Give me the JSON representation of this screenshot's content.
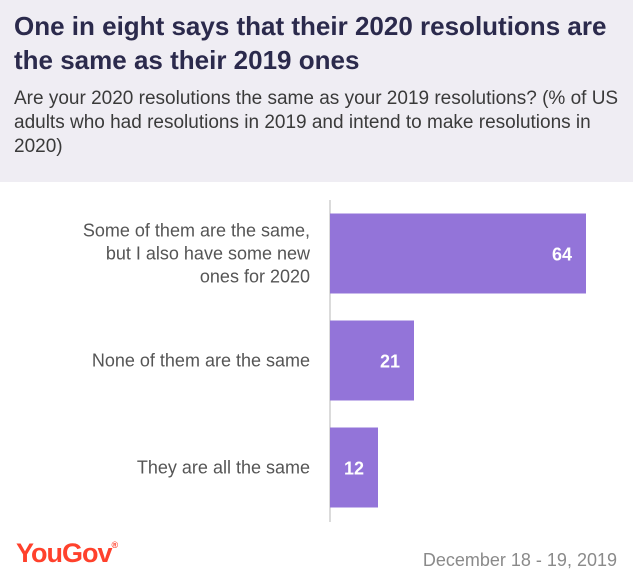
{
  "header": {
    "title": "One in eight says that their 2020 resolutions are the same as their 2019 ones",
    "subtitle": "Are your 2020 resolutions the same as your 2019 resolutions? (% of US adults who had resolutions in 2019 and intend to make resolutions in 2020)"
  },
  "chart_data": {
    "type": "bar",
    "orientation": "horizontal",
    "categories": [
      "Some of them are the same, but I also have some new ones for 2020",
      "None of them are the same",
      "They are all the same"
    ],
    "category_lines": [
      [
        "Some of them are the same,",
        "but I also have some new",
        "ones for 2020"
      ],
      [
        "None of them are the same"
      ],
      [
        "They are all the same"
      ]
    ],
    "values": [
      64,
      21,
      12
    ],
    "xlim": [
      0,
      72
    ],
    "bar_color": "#9374d9",
    "value_label_color": "#ffffff",
    "axis_color": "#cfcfcf",
    "grid": false,
    "legend": "none"
  },
  "footer": {
    "logo": "YouGov",
    "logo_mark": "®",
    "logo_color": "#ff412c",
    "date": "December 18 - 19, 2019"
  }
}
